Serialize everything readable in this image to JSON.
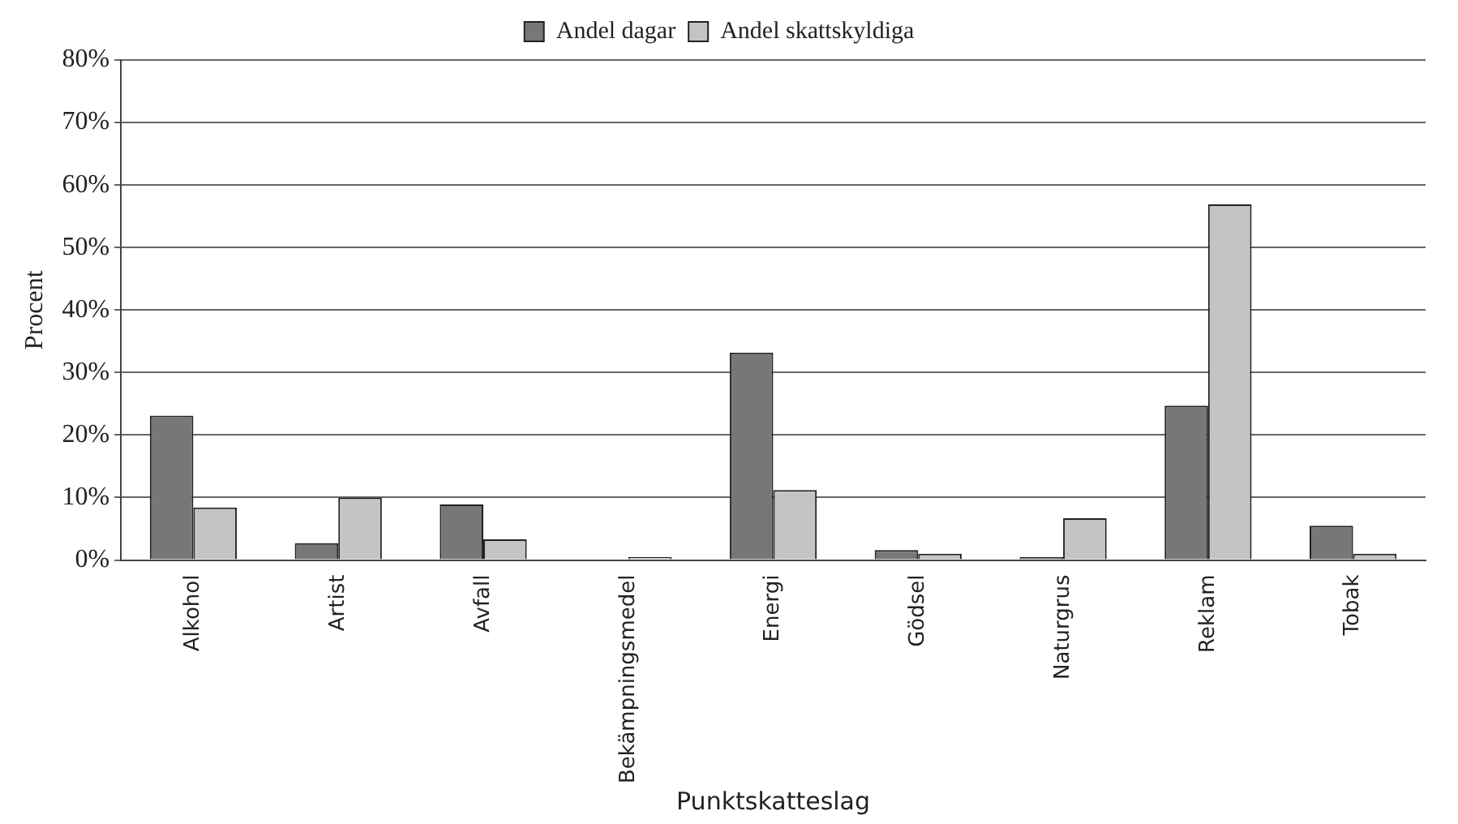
{
  "chart_data": {
    "type": "bar",
    "xlabel": "Punktskatteslag",
    "ylabel": "Procent",
    "categories": [
      "Alkohol",
      "Artist",
      "Avfall",
      "Bekämpningsmedel",
      "Energi",
      "Gödsel",
      "Naturgrus",
      "Reklam",
      "Tobak"
    ],
    "series": [
      {
        "name": "Andel dagar",
        "color": "#777777",
        "values": [
          23.1,
          2.7,
          8.9,
          0,
          33.2,
          1.6,
          0.5,
          24.7,
          5.5
        ]
      },
      {
        "name": "Andel skattskyldiga",
        "color": "#c4c4c4",
        "values": [
          8.4,
          10,
          3.3,
          0.5,
          11.2,
          1.0,
          6.7,
          56.9,
          1.0
        ]
      }
    ],
    "ylim": [
      0,
      80
    ],
    "yticks": [
      {
        "value": 0,
        "label": "0%"
      },
      {
        "value": 10,
        "label": "10%"
      },
      {
        "value": 20,
        "label": "20%"
      },
      {
        "value": 30,
        "label": "30%"
      },
      {
        "value": 40,
        "label": "40%"
      },
      {
        "value": 50,
        "label": "50%"
      },
      {
        "value": 60,
        "label": "60%"
      },
      {
        "value": 70,
        "label": "70%"
      },
      {
        "value": 80,
        "label": "80%"
      }
    ],
    "grid": "y",
    "legend": "top"
  }
}
